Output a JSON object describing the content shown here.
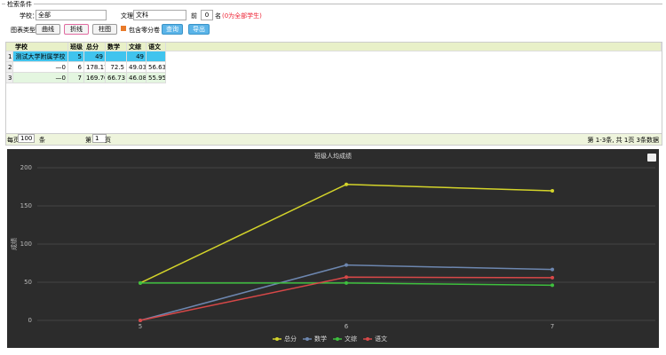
{
  "search": {
    "legend": "检索条件",
    "school_label": "学校：",
    "school_value": "全部",
    "track_label": "文理：",
    "track_value": "文科",
    "top_label": "前",
    "top_value": "0",
    "top_suffix": "名",
    "top_hint": "(0为全部学生)",
    "chart_type_label": "图表类型：",
    "chart_types": [
      "曲线",
      "折线",
      "柱图"
    ],
    "include_zero": "包含零分卷",
    "query": "查询",
    "export": "导出"
  },
  "table": {
    "columns": [
      "学校",
      "班级",
      "总分",
      "数学",
      "文综",
      "语文"
    ],
    "rows": [
      [
        1,
        "测试大学附属学校",
        5,
        49,
        null,
        49,
        null
      ],
      [
        2,
        "—0",
        6,
        178.17,
        72.5,
        49.03,
        56.63
      ],
      [
        3,
        "—0",
        7,
        169.76,
        66.73,
        46.08,
        55.95
      ]
    ]
  },
  "pager": {
    "per_page_label": "每页",
    "per_page": "100",
    "unit": "条",
    "page_label": "第",
    "page": "1",
    "page_unit": "页",
    "summary": "第 1-3条, 共 1页 3条数据"
  },
  "chart_data": {
    "type": "line",
    "title": "班级人均成绩",
    "y_label": "成绩",
    "categories": [
      "5",
      "6",
      "7"
    ],
    "ylim": [
      0,
      200
    ],
    "yticks": [
      0,
      50,
      100,
      150,
      200
    ],
    "grid": true,
    "series": [
      {
        "name": "总分",
        "color": "#d4d42a",
        "values": [
          49,
          178.17,
          169.76
        ]
      },
      {
        "name": "数学",
        "color": "#6d87b0",
        "values": [
          0,
          72.5,
          66.73
        ]
      },
      {
        "name": "文综",
        "color": "#3ec03e",
        "values": [
          49,
          49.03,
          46.08
        ]
      },
      {
        "name": "语文",
        "color": "#d84848",
        "values": [
          0,
          56.63,
          55.95
        ]
      }
    ]
  }
}
